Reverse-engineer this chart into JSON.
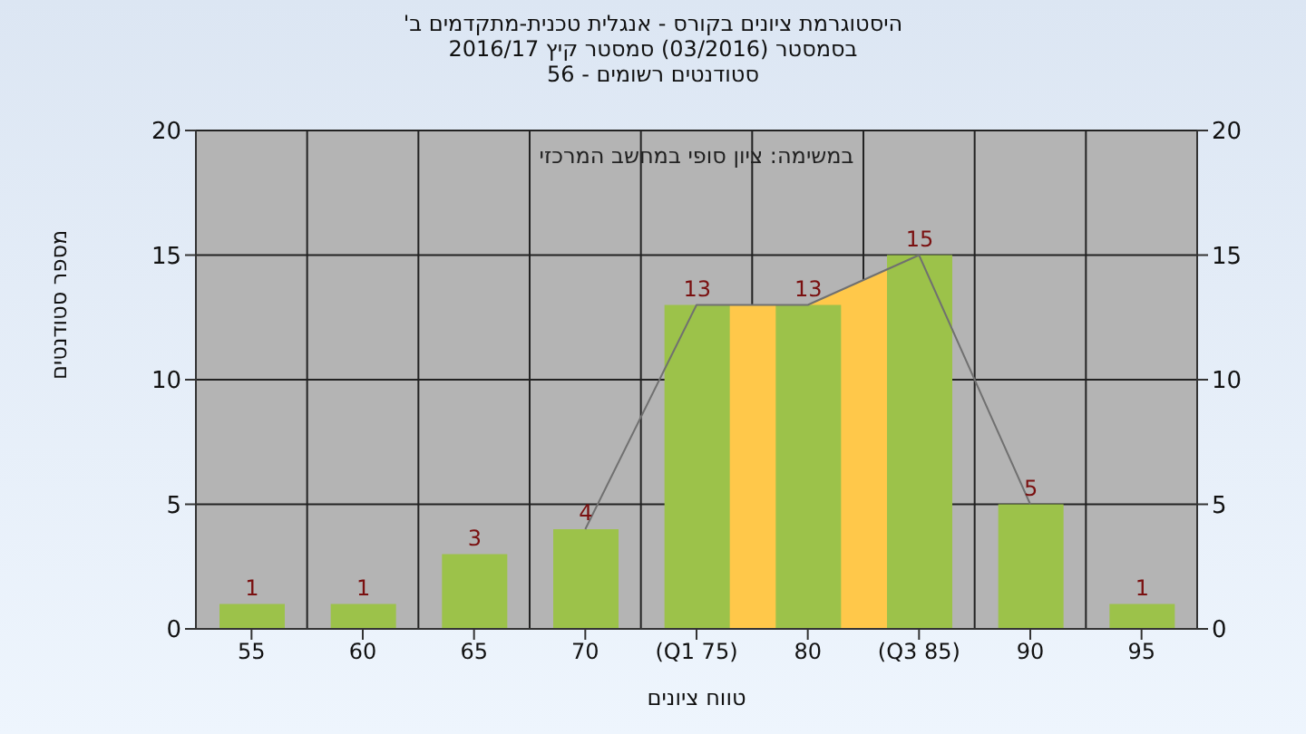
{
  "chart_data": {
    "type": "bar",
    "title": "היסטוגרמת ציונים בקורס - אנגלית טכנית-מתקדמים ב'",
    "subtitle": "בסמסטר (03/2016) סמסטר קיץ 2016/17\nסטודנטים רשומים - 56",
    "xlabel": "טווח ציונים",
    "ylabel": "מספר סטודנטים",
    "annotations": [
      "במשימה: ציון סופי במחשב המרכזי"
    ],
    "categories": [
      "55",
      "60",
      "65",
      "70",
      "(Q1 75)",
      "80",
      "(Q3 85)",
      "90",
      "95"
    ],
    "series": [
      {
        "type": "area",
        "color": "#ffc84a",
        "values": [
          null,
          null,
          null,
          null,
          13,
          13,
          15,
          null,
          null
        ]
      },
      {
        "type": "line",
        "color": "#707070",
        "values": [
          null,
          null,
          null,
          4,
          13,
          13,
          15,
          5,
          null
        ]
      },
      {
        "color": "#9cc24a",
        "values": [
          1,
          1,
          3,
          4,
          13,
          13,
          15,
          5,
          1
        ],
        "value_labels": [
          "1",
          "1",
          "3",
          "4",
          "13",
          "13",
          "15",
          "5",
          "1"
        ]
      }
    ],
    "ylim": [
      0,
      20
    ],
    "yticks": [
      0,
      5,
      10,
      15,
      20
    ],
    "y2lim": [
      0,
      20
    ],
    "y2ticks": [
      0,
      5,
      10,
      15,
      20
    ],
    "grid": true,
    "legend": false,
    "marker": "none"
  }
}
